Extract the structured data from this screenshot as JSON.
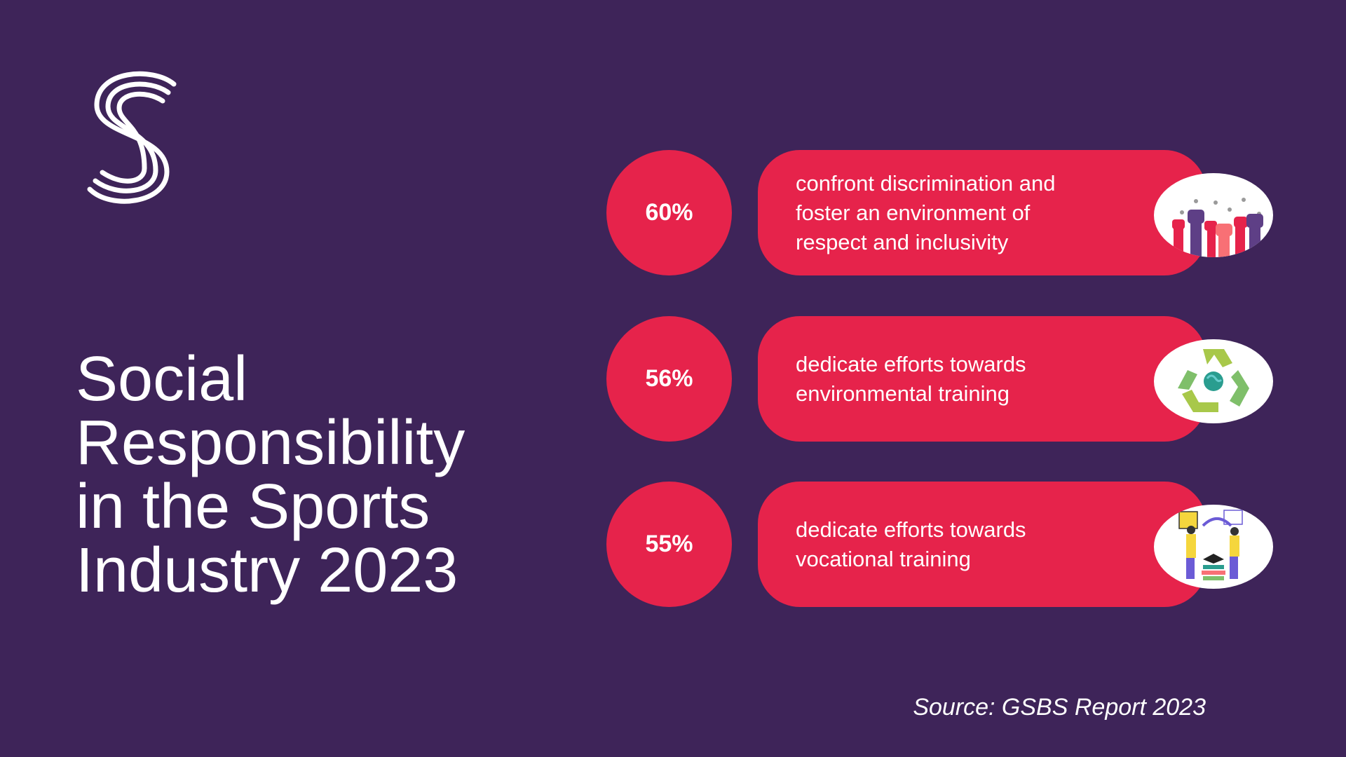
{
  "title": {
    "lines": [
      "Social",
      "Responsibility",
      "in the Sports",
      "Industry 2023"
    ]
  },
  "colors": {
    "background": "#3e2459",
    "accent": "#e6234b",
    "text": "#ffffff"
  },
  "stats": [
    {
      "percent": "60%",
      "lines": [
        "confront discrimination and",
        "foster an environment of",
        "respect and inclusivity"
      ],
      "icon": "raised-fists-icon"
    },
    {
      "percent": "56%",
      "lines": [
        "dedicate efforts towards",
        "environmental training"
      ],
      "icon": "recycle-globe-icon"
    },
    {
      "percent": "55%",
      "lines": [
        "dedicate efforts towards",
        "vocational training"
      ],
      "icon": "vocational-training-icon"
    }
  ],
  "source": "Source: GSBS Report 2023"
}
